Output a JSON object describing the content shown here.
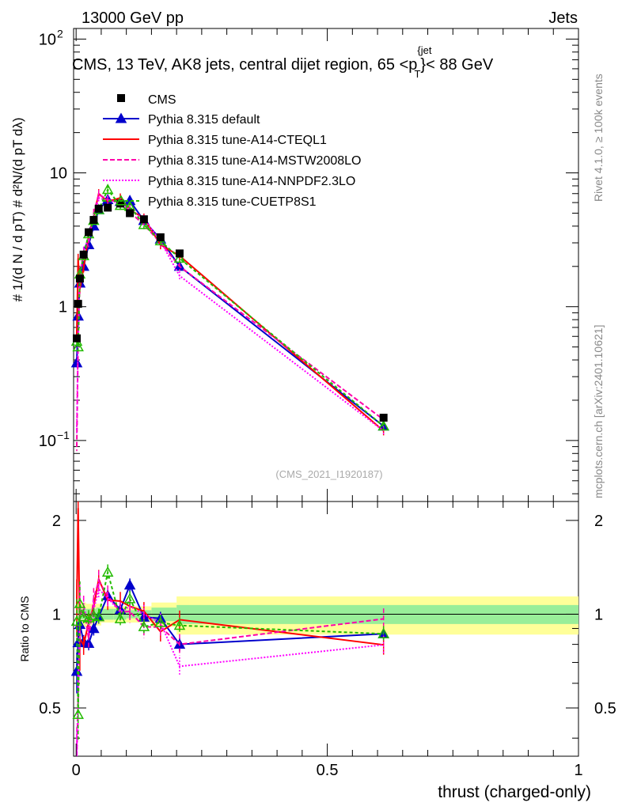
{
  "header": {
    "left": "13000 GeV pp",
    "right": "Jets",
    "title_prefix": "CMS, 13 TeV, AK8 jets, central dijet region, 65 <p",
    "title_sup": "{jet",
    "title_sub": "T",
    "title_suffix": "}< 88 GeV"
  },
  "side_labels": {
    "rivet": "Rivet 4.1.0, ≥ 100k events",
    "mcplots": "mcplots.cern.ch [arXiv:2401.10621]"
  },
  "watermark": "(CMS_2021_I1920187)",
  "chart_data": {
    "type": "line",
    "xlabel": "thrust (charged-only)",
    "ylabel_main": "# 1/(d N / d pT) # d²N/(d pT dλ)",
    "ylabel_ratio": "Ratio to CMS",
    "xlim": [
      -0.005,
      1.0
    ],
    "ylim_main": [
      0.035,
      120
    ],
    "yscale_main": "log",
    "ylim_ratio": [
      0.35,
      2.3
    ],
    "yscale_ratio": "log",
    "x_ticks": [
      {
        "v": 0,
        "label": "0"
      },
      {
        "v": 0.5,
        "label": "0.5"
      },
      {
        "v": 1,
        "label": "1"
      }
    ],
    "main_ticks": [
      {
        "v": 100,
        "label": "10"
      },
      {
        "v": 10,
        "label": "10"
      },
      {
        "v": 1,
        "label": "1"
      },
      {
        "v": 0.1,
        "label": "10"
      }
    ],
    "main_tick_exps": [
      "2",
      "",
      "",
      "−1"
    ],
    "ratio_ticks": [
      {
        "v": 2,
        "label": "2"
      },
      {
        "v": 1,
        "label": "1"
      },
      {
        "v": 0.5,
        "label": "0.5"
      }
    ],
    "bins": [
      [
        0,
        0.0025
      ],
      [
        0.0025,
        0.005
      ],
      [
        0.005,
        0.01
      ],
      [
        0.01,
        0.02
      ],
      [
        0.02,
        0.03
      ],
      [
        0.03,
        0.04
      ],
      [
        0.04,
        0.05
      ],
      [
        0.05,
        0.075
      ],
      [
        0.075,
        0.1
      ],
      [
        0.1,
        0.125
      ],
      [
        0.125,
        0.15
      ],
      [
        0.15,
        0.2
      ],
      [
        0.2,
        0.225
      ],
      [
        0.225,
        1.0
      ]
    ],
    "x": [
      0.0013,
      0.004,
      0.0075,
      0.015,
      0.025,
      0.035,
      0.045,
      0.063,
      0.088,
      0.107,
      0.135,
      0.168,
      0.206,
      0.612
    ],
    "band_inner": [
      0.05,
      0.05,
      0.05,
      0.04,
      0.04,
      0.04,
      0.05,
      0.04,
      0.04,
      0.03,
      0.03,
      0.05,
      0.07,
      0.07
    ],
    "band_outer": [
      0.1,
      0.1,
      0.1,
      0.09,
      0.08,
      0.08,
      0.08,
      0.06,
      0.06,
      0.06,
      0.06,
      0.09,
      0.14,
      0.14
    ],
    "data": {
      "name": "CMS",
      "values": [
        0.58,
        1.05,
        1.62,
        2.45,
        3.6,
        4.45,
        5.4,
        5.5,
        5.9,
        5.0,
        4.5,
        3.3,
        2.5,
        0.148
      ]
    },
    "series": [
      {
        "name": "Pythia 8.315 default",
        "color": "#0000cc",
        "dash": "",
        "marker": "tri",
        "values": [
          0.38,
          0.85,
          1.5,
          2.0,
          2.9,
          4.0,
          5.3,
          6.3,
          6.1,
          6.2,
          4.4,
          3.2,
          2.0,
          0.128
        ],
        "ratio_err": 0.05
      },
      {
        "name": "Pythia 8.315 tune-A14-CTEQL1",
        "color": "#ff0000",
        "dash": "",
        "marker": "none",
        "values": [
          0.62,
          2.3,
          1.35,
          1.95,
          3.4,
          4.7,
          7.0,
          6.1,
          6.5,
          5.3,
          4.6,
          2.9,
          2.4,
          0.118
        ],
        "ratio_err": 0.07
      },
      {
        "name": "Pythia 8.315 tune-A14-MSTW2008LO",
        "color": "#ff00aa",
        "dash": "6,3",
        "marker": "none",
        "values": [
          0.09,
          0.55,
          1.6,
          2.6,
          3.0,
          5.0,
          6.9,
          6.3,
          6.0,
          5.1,
          4.1,
          3.0,
          2.0,
          0.143
        ],
        "ratio_err": 0.08
      },
      {
        "name": "Pythia 8.315 tune-A14-NNPDF2.3LO",
        "color": "#ff00ff",
        "dash": "2,2",
        "marker": "none",
        "values": [
          0.12,
          0.6,
          1.7,
          2.6,
          3.3,
          4.6,
          6.5,
          6.2,
          6.0,
          5.3,
          4.5,
          3.1,
          1.7,
          0.118
        ],
        "ratio_err": 0.07
      },
      {
        "name": "Pythia 8.315 tune-CUETP8S1",
        "color": "#22bb00",
        "dash": "4,3",
        "marker": "tri-open",
        "values": [
          0.55,
          0.5,
          1.75,
          2.4,
          3.5,
          4.4,
          5.3,
          7.5,
          5.7,
          5.6,
          4.1,
          3.1,
          2.3,
          0.128
        ],
        "ratio_err": 0.06
      }
    ]
  }
}
